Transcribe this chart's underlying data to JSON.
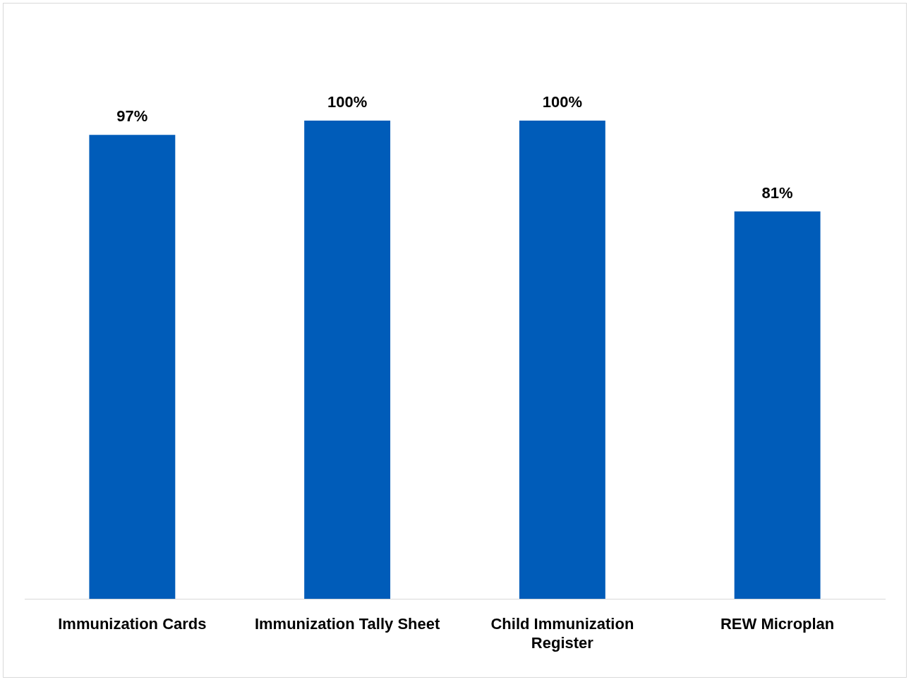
{
  "chart_data": {
    "type": "bar",
    "categories": [
      "Immunization Cards",
      "Immunization Tally Sheet",
      "Child Immunization Register",
      "REW Microplan"
    ],
    "values": [
      97,
      100,
      100,
      81
    ],
    "value_labels": [
      "97%",
      "100%",
      "100%",
      "81%"
    ],
    "color": "#005cb9",
    "tick_labels": "x",
    "grid": false,
    "legend": false
  }
}
